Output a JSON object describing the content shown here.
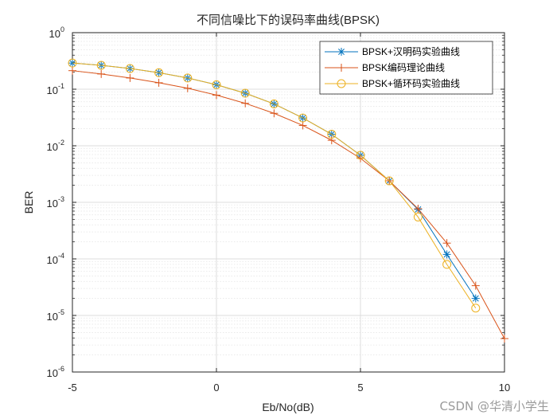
{
  "chart_data": {
    "type": "line",
    "title": "不同信噪比下的误码率曲线(BPSK)",
    "xlabel": "Eb/No(dB)",
    "ylabel": "BER",
    "xlim": [
      -5,
      10
    ],
    "ylim": [
      1e-06,
      1
    ],
    "yscale": "log",
    "grid": true,
    "minor_grid": true,
    "legend_position": "top-right",
    "x_ticks": [
      -5,
      0,
      5,
      10
    ],
    "y_ticks": [
      {
        "value": 1,
        "base": "10",
        "exp": "0"
      },
      {
        "value": 0.1,
        "base": "10",
        "exp": "-1"
      },
      {
        "value": 0.01,
        "base": "10",
        "exp": "-2"
      },
      {
        "value": 0.001,
        "base": "10",
        "exp": "-3"
      },
      {
        "value": 0.0001,
        "base": "10",
        "exp": "-4"
      },
      {
        "value": 1e-05,
        "base": "10",
        "exp": "-5"
      },
      {
        "value": 1e-06,
        "base": "10",
        "exp": "-6"
      }
    ],
    "series": [
      {
        "name": "BPSK+汉明码实验曲线",
        "color": "#0072BD",
        "marker": "asterisk",
        "x": [
          -5,
          -4,
          -3,
          -2,
          -1,
          0,
          1,
          2,
          3,
          4,
          5,
          6,
          7,
          8,
          9
        ],
        "y": [
          0.29,
          0.265,
          0.232,
          0.196,
          0.158,
          0.12,
          0.085,
          0.055,
          0.031,
          0.016,
          0.0068,
          0.0024,
          0.00075,
          0.00012,
          2e-05
        ]
      },
      {
        "name": "BPSK编码理论曲线",
        "color": "#D95319",
        "marker": "plus",
        "x": [
          -5,
          -4,
          -3,
          -2,
          -1,
          0,
          1,
          2,
          3,
          4,
          5,
          6,
          7,
          8,
          9,
          10
        ],
        "y": [
          0.213,
          0.186,
          0.158,
          0.13,
          0.104,
          0.0786,
          0.0563,
          0.0375,
          0.0229,
          0.0125,
          0.006,
          0.0024,
          0.00077,
          0.00019,
          3.36e-05,
          3.9e-06
        ]
      },
      {
        "name": "BPSK+循环码实验曲线",
        "color": "#EDB120",
        "marker": "circle",
        "x": [
          -5,
          -4,
          -3,
          -2,
          -1,
          0,
          1,
          2,
          3,
          4,
          5,
          6,
          7,
          8,
          9
        ],
        "y": [
          0.29,
          0.265,
          0.232,
          0.196,
          0.158,
          0.12,
          0.085,
          0.055,
          0.031,
          0.016,
          0.0068,
          0.0024,
          0.00055,
          8e-05,
          1.35e-05
        ]
      }
    ]
  },
  "watermark": "CSDN @华清小学生"
}
